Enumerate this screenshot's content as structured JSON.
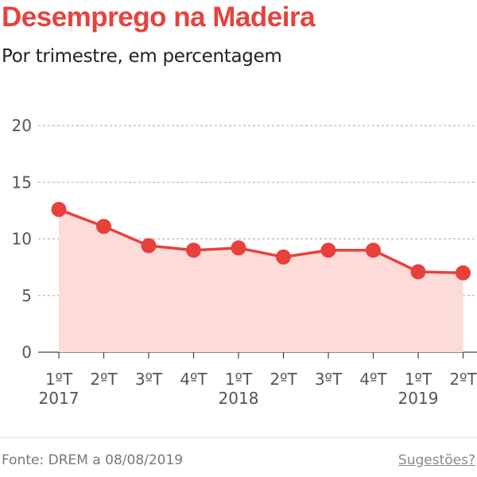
{
  "header": {
    "title": "Desemprego na Madeira",
    "subtitle": "Por trimestre, em percentagem"
  },
  "footer": {
    "source": "Fonte: DREM a 08/08/2019",
    "suggestions": "Sugestões?"
  },
  "colors": {
    "accent": "#e8413c",
    "area_fill": "#fddbd8",
    "grid": "#aaaaaa",
    "axis_text": "#555555"
  },
  "chart_data": {
    "type": "area",
    "title": "Desemprego na Madeira",
    "subtitle": "Por trimestre, em percentagem",
    "xlabel": "",
    "ylabel": "",
    "ylim": [
      0,
      20
    ],
    "yticks": [
      0,
      5,
      10,
      15,
      20
    ],
    "grid": true,
    "legend": "none",
    "categories": [
      "1ºT",
      "2ºT",
      "3ºT",
      "4ºT",
      "1ºT",
      "2ºT",
      "3ºT",
      "4ºT",
      "1ºT",
      "2ºT"
    ],
    "years": [
      {
        "label": "2017",
        "index": 0
      },
      {
        "label": "2018",
        "index": 4
      },
      {
        "label": "2019",
        "index": 8
      }
    ],
    "series": [
      {
        "values": [
          12.6,
          11.1,
          9.4,
          9.0,
          9.2,
          8.4,
          9.0,
          9.0,
          7.1,
          7.0
        ]
      }
    ]
  }
}
